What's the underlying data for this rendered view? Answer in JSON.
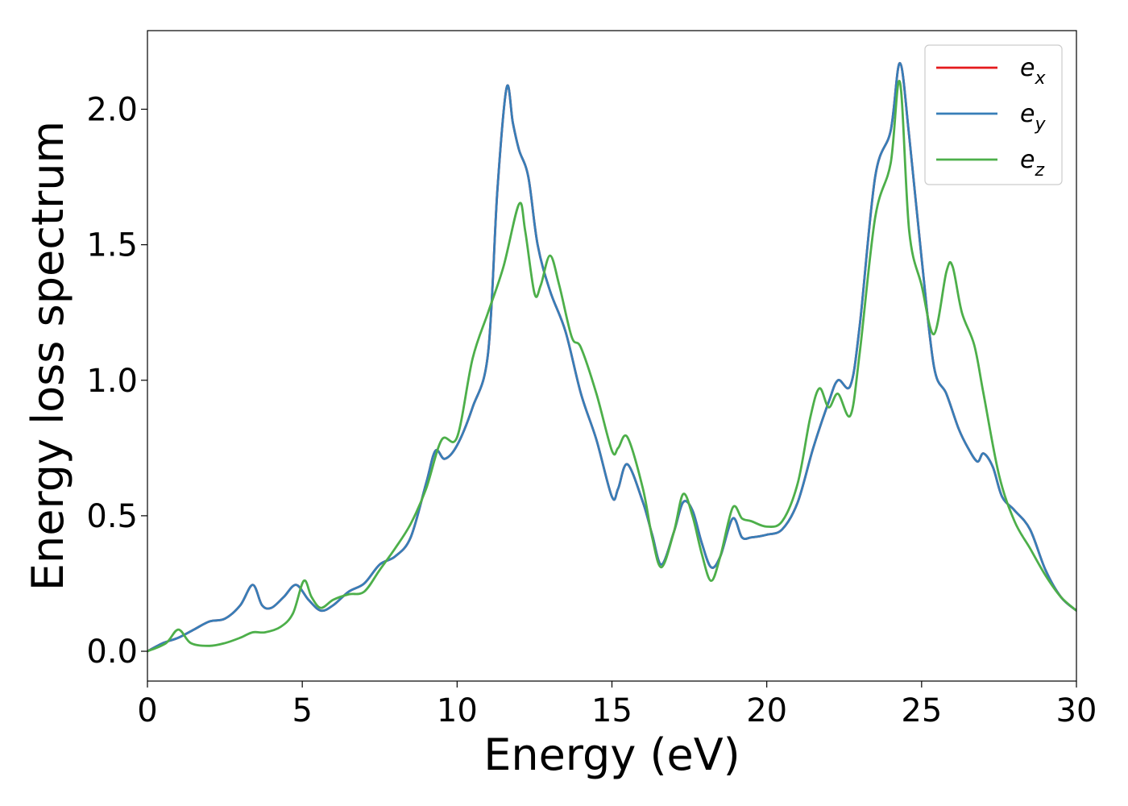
{
  "chart_data": {
    "type": "line",
    "title": "",
    "xlabel": "Energy (eV)",
    "ylabel": "Energy loss spectrum",
    "xlim": [
      0,
      30
    ],
    "ylim": [
      -0.11,
      2.29
    ],
    "xticks": [
      0,
      5,
      10,
      15,
      20,
      25,
      30
    ],
    "yticks": [
      0.0,
      0.5,
      1.0,
      1.5,
      2.0
    ],
    "xtick_labels": [
      "0",
      "5",
      "10",
      "15",
      "20",
      "25",
      "30"
    ],
    "ytick_labels": [
      "0.0",
      "0.5",
      "1.0",
      "1.5",
      "2.0"
    ],
    "grid": false,
    "legend_position": "top-right",
    "series": [
      {
        "name": "e_x",
        "legend_base": "e",
        "legend_sub": "x",
        "color": "#e41a1c",
        "x": [
          0,
          0.5,
          1.0,
          1.5,
          2.0,
          2.5,
          3.0,
          3.4,
          3.7,
          4.0,
          4.4,
          4.8,
          5.2,
          5.6,
          6.0,
          6.5,
          7.0,
          7.5,
          8.0,
          8.5,
          9.0,
          9.3,
          9.6,
          10.0,
          10.5,
          11.0,
          11.3,
          11.6,
          11.8,
          12.0,
          12.3,
          12.6,
          13.0,
          13.5,
          14.0,
          14.5,
          15.0,
          15.2,
          15.5,
          16.0,
          16.3,
          16.6,
          17.0,
          17.3,
          17.6,
          17.9,
          18.2,
          18.5,
          18.9,
          19.2,
          19.5,
          20.0,
          20.5,
          21.0,
          21.5,
          22.0,
          22.3,
          22.7,
          23.0,
          23.5,
          24.0,
          24.3,
          24.6,
          25.0,
          25.4,
          25.8,
          26.2,
          26.5,
          26.8,
          27.0,
          27.3,
          27.6,
          28.0,
          28.5,
          29.0,
          29.5,
          30.0
        ],
        "y": [
          0.0,
          0.03,
          0.05,
          0.08,
          0.11,
          0.12,
          0.17,
          0.245,
          0.17,
          0.16,
          0.2,
          0.245,
          0.19,
          0.15,
          0.17,
          0.22,
          0.25,
          0.32,
          0.35,
          0.42,
          0.62,
          0.74,
          0.71,
          0.76,
          0.9,
          1.1,
          1.7,
          2.08,
          1.95,
          1.85,
          1.75,
          1.5,
          1.33,
          1.18,
          0.95,
          0.78,
          0.57,
          0.6,
          0.69,
          0.55,
          0.43,
          0.32,
          0.44,
          0.55,
          0.52,
          0.4,
          0.31,
          0.35,
          0.49,
          0.42,
          0.42,
          0.43,
          0.45,
          0.55,
          0.75,
          0.92,
          1.0,
          0.98,
          1.2,
          1.75,
          1.92,
          2.17,
          1.9,
          1.45,
          1.05,
          0.95,
          0.82,
          0.75,
          0.7,
          0.73,
          0.68,
          0.57,
          0.52,
          0.45,
          0.3,
          0.2,
          0.15
        ]
      },
      {
        "name": "e_y",
        "legend_base": "e",
        "legend_sub": "y",
        "color": "#377eb8",
        "x": [
          0,
          0.5,
          1.0,
          1.5,
          2.0,
          2.5,
          3.0,
          3.4,
          3.7,
          4.0,
          4.4,
          4.8,
          5.2,
          5.6,
          6.0,
          6.5,
          7.0,
          7.5,
          8.0,
          8.5,
          9.0,
          9.3,
          9.6,
          10.0,
          10.5,
          11.0,
          11.3,
          11.6,
          11.8,
          12.0,
          12.3,
          12.6,
          13.0,
          13.5,
          14.0,
          14.5,
          15.0,
          15.2,
          15.5,
          16.0,
          16.3,
          16.6,
          17.0,
          17.3,
          17.6,
          17.9,
          18.2,
          18.5,
          18.9,
          19.2,
          19.5,
          20.0,
          20.5,
          21.0,
          21.5,
          22.0,
          22.3,
          22.7,
          23.0,
          23.5,
          24.0,
          24.3,
          24.6,
          25.0,
          25.4,
          25.8,
          26.2,
          26.5,
          26.8,
          27.0,
          27.3,
          27.6,
          28.0,
          28.5,
          29.0,
          29.5,
          30.0
        ],
        "y": [
          0.0,
          0.03,
          0.05,
          0.08,
          0.11,
          0.12,
          0.17,
          0.245,
          0.17,
          0.16,
          0.2,
          0.245,
          0.19,
          0.15,
          0.17,
          0.22,
          0.25,
          0.32,
          0.35,
          0.42,
          0.62,
          0.74,
          0.71,
          0.76,
          0.9,
          1.1,
          1.7,
          2.08,
          1.95,
          1.85,
          1.75,
          1.5,
          1.33,
          1.18,
          0.95,
          0.78,
          0.57,
          0.6,
          0.69,
          0.55,
          0.43,
          0.32,
          0.44,
          0.55,
          0.52,
          0.4,
          0.31,
          0.35,
          0.49,
          0.42,
          0.42,
          0.43,
          0.45,
          0.55,
          0.75,
          0.92,
          1.0,
          0.98,
          1.2,
          1.75,
          1.92,
          2.17,
          1.9,
          1.45,
          1.05,
          0.95,
          0.82,
          0.75,
          0.7,
          0.73,
          0.68,
          0.57,
          0.52,
          0.45,
          0.3,
          0.2,
          0.15
        ]
      },
      {
        "name": "e_z",
        "legend_base": "e",
        "legend_sub": "z",
        "color": "#4daf4a",
        "x": [
          0,
          0.6,
          1.0,
          1.4,
          2.0,
          2.5,
          3.0,
          3.4,
          3.8,
          4.3,
          4.7,
          5.05,
          5.3,
          5.6,
          6.0,
          6.5,
          7.0,
          7.5,
          8.0,
          8.5,
          9.0,
          9.5,
          10.0,
          10.5,
          11.0,
          11.5,
          12.0,
          12.2,
          12.5,
          12.7,
          13.0,
          13.3,
          13.7,
          14.0,
          14.5,
          15.0,
          15.2,
          15.5,
          16.0,
          16.3,
          16.6,
          17.0,
          17.3,
          17.6,
          17.9,
          18.2,
          18.5,
          18.9,
          19.2,
          19.5,
          20.0,
          20.5,
          21.0,
          21.4,
          21.7,
          22.0,
          22.3,
          22.7,
          23.0,
          23.5,
          24.0,
          24.3,
          24.6,
          25.0,
          25.4,
          25.8,
          26.0,
          26.3,
          26.7,
          27.0,
          27.5,
          28.0,
          28.5,
          29.0,
          29.5,
          30.0
        ],
        "y": [
          0.0,
          0.03,
          0.08,
          0.03,
          0.02,
          0.03,
          0.05,
          0.07,
          0.07,
          0.09,
          0.14,
          0.26,
          0.2,
          0.16,
          0.19,
          0.21,
          0.22,
          0.3,
          0.38,
          0.47,
          0.6,
          0.78,
          0.79,
          1.08,
          1.25,
          1.42,
          1.65,
          1.55,
          1.32,
          1.35,
          1.46,
          1.35,
          1.16,
          1.12,
          0.95,
          0.74,
          0.75,
          0.79,
          0.6,
          0.42,
          0.31,
          0.44,
          0.58,
          0.5,
          0.36,
          0.26,
          0.35,
          0.53,
          0.49,
          0.48,
          0.46,
          0.48,
          0.62,
          0.86,
          0.97,
          0.9,
          0.95,
          0.87,
          1.1,
          1.6,
          1.8,
          2.1,
          1.55,
          1.35,
          1.17,
          1.4,
          1.42,
          1.25,
          1.13,
          0.95,
          0.65,
          0.48,
          0.38,
          0.28,
          0.2,
          0.15
        ]
      }
    ]
  }
}
